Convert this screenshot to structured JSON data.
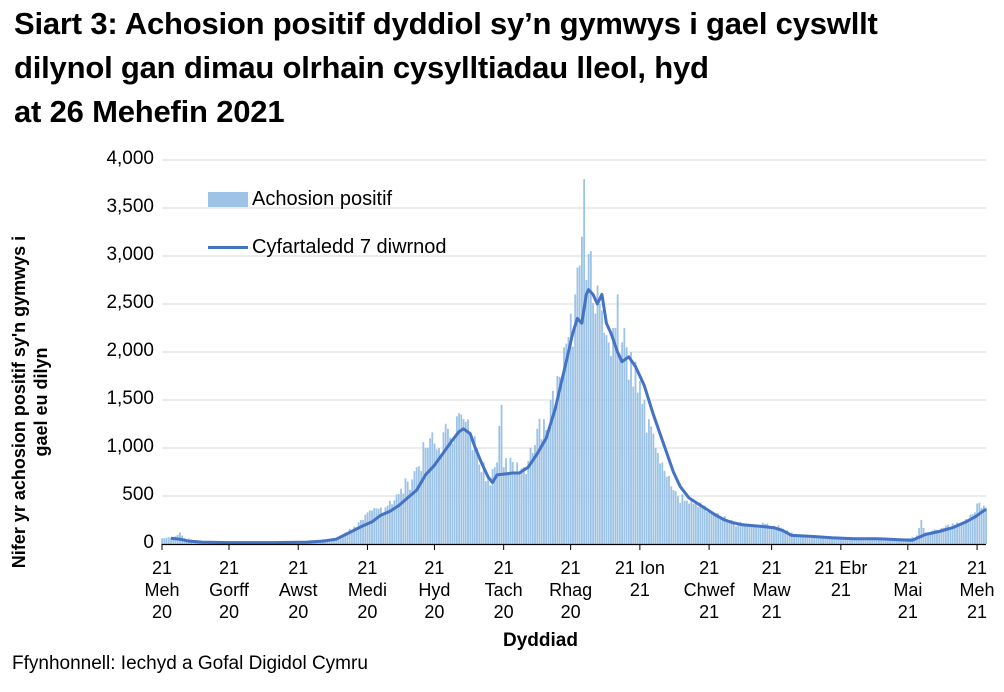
{
  "title": {
    "line1": "Siart 3: Achosion positif dyddiol sy’n gymwys i gael cyswllt",
    "line2": "dilynol gan dimau olrhain cysylltiadau lleol, hyd",
    "line3": "at 26 Mehefin 2021"
  },
  "source": "Ffynhonnell: Iechyd a Gofal Digidol Cymru",
  "colors": {
    "bar": "#9dc3e6",
    "line": "#4472c4",
    "grid": "#d9d9d9",
    "axis": "#000000"
  },
  "chart_data": {
    "type": "bar",
    "title": "Siart 3: Achosion positif dyddiol sy’n gymwys i gael cyswllt dilynol gan dimau olrhain cysylltiadau lleol, hyd at 26 Mehefin 2021",
    "xlabel": "Dyddiad",
    "ylabel": "Nifer yr achosion positif sy'n gymwys i gael eu dilyn",
    "ylim": [
      0,
      4000
    ],
    "yticks": [
      "0",
      "500",
      "1,000",
      "1,500",
      "2,000",
      "2,500",
      "3,000",
      "3,500",
      "4,000"
    ],
    "ytick_values": [
      0,
      500,
      1000,
      1500,
      2000,
      2500,
      3000,
      3500,
      4000
    ],
    "grid": true,
    "legend_position": "upper-left",
    "legend": [
      "Achosion positif",
      "Cyfartaledd 7 diwrnod"
    ],
    "x_tick_labels": [
      {
        "lines": [
          "21",
          "Meh",
          "20"
        ],
        "day": 0
      },
      {
        "lines": [
          "21",
          "Gorff",
          "20"
        ],
        "day": 30
      },
      {
        "lines": [
          "21",
          "Awst",
          "20"
        ],
        "day": 61
      },
      {
        "lines": [
          "21",
          "Medi",
          "20"
        ],
        "day": 92
      },
      {
        "lines": [
          "21",
          "Hyd",
          "20"
        ],
        "day": 122
      },
      {
        "lines": [
          "21",
          "Tach",
          "20"
        ],
        "day": 153
      },
      {
        "lines": [
          "21",
          "Rhag",
          "20"
        ],
        "day": 183
      },
      {
        "lines": [
          "21 Ion",
          "21"
        ],
        "day": 214
      },
      {
        "lines": [
          "21",
          "Chwef",
          "21"
        ],
        "day": 245
      },
      {
        "lines": [
          "21",
          "Maw",
          "21"
        ],
        "day": 273
      },
      {
        "lines": [
          "21 Ebr",
          "21"
        ],
        "day": 304
      },
      {
        "lines": [
          "21",
          "Mai",
          "21"
        ],
        "day": 334
      },
      {
        "lines": [
          "21",
          "Meh",
          "21"
        ],
        "day": 365
      }
    ],
    "n_days": 370,
    "series": [
      {
        "name": "Achosion positif",
        "type": "bar",
        "anchors": [
          [
            0,
            60
          ],
          [
            3,
            70
          ],
          [
            6,
            80
          ],
          [
            8,
            120
          ],
          [
            10,
            60
          ],
          [
            15,
            40
          ],
          [
            20,
            20
          ],
          [
            30,
            15
          ],
          [
            40,
            20
          ],
          [
            50,
            20
          ],
          [
            60,
            25
          ],
          [
            70,
            40
          ],
          [
            78,
            60
          ],
          [
            82,
            120
          ],
          [
            86,
            180
          ],
          [
            90,
            250
          ],
          [
            94,
            350
          ],
          [
            98,
            380
          ],
          [
            102,
            450
          ],
          [
            106,
            520
          ],
          [
            110,
            650
          ],
          [
            114,
            800
          ],
          [
            118,
            1000
          ],
          [
            120,
            1100
          ],
          [
            124,
            1000
          ],
          [
            128,
            1200
          ],
          [
            132,
            1330
          ],
          [
            135,
            1300
          ],
          [
            138,
            1150
          ],
          [
            141,
            1000
          ],
          [
            144,
            850
          ],
          [
            146,
            700
          ],
          [
            148,
            780
          ],
          [
            150,
            850
          ],
          [
            152,
            1450
          ],
          [
            153,
            800
          ],
          [
            156,
            900
          ],
          [
            159,
            850
          ],
          [
            162,
            800
          ],
          [
            165,
            1000
          ],
          [
            168,
            1200
          ],
          [
            171,
            1300
          ],
          [
            174,
            1500
          ],
          [
            177,
            1750
          ],
          [
            180,
            2050
          ],
          [
            183,
            2400
          ],
          [
            185,
            2600
          ],
          [
            187,
            2900
          ],
          [
            189,
            3800
          ],
          [
            190,
            2750
          ],
          [
            192,
            3050
          ],
          [
            194,
            2400
          ],
          [
            196,
            2500
          ],
          [
            198,
            2200
          ],
          [
            200,
            2100
          ],
          [
            202,
            2250
          ],
          [
            204,
            2600
          ],
          [
            206,
            2100
          ],
          [
            208,
            2050
          ],
          [
            210,
            2000
          ],
          [
            212,
            1900
          ],
          [
            214,
            1700
          ],
          [
            216,
            1500
          ],
          [
            218,
            1300
          ],
          [
            220,
            1150
          ],
          [
            222,
            950
          ],
          [
            224,
            850
          ],
          [
            226,
            700
          ],
          [
            228,
            600
          ],
          [
            230,
            550
          ],
          [
            234,
            450
          ],
          [
            238,
            420
          ],
          [
            242,
            380
          ],
          [
            246,
            330
          ],
          [
            250,
            280
          ],
          [
            254,
            240
          ],
          [
            258,
            210
          ],
          [
            262,
            200
          ],
          [
            266,
            190
          ],
          [
            270,
            210
          ],
          [
            274,
            190
          ],
          [
            278,
            160
          ],
          [
            282,
            120
          ],
          [
            286,
            90
          ],
          [
            290,
            80
          ],
          [
            295,
            75
          ],
          [
            300,
            70
          ],
          [
            305,
            65
          ],
          [
            310,
            60
          ],
          [
            315,
            55
          ],
          [
            320,
            60
          ],
          [
            325,
            55
          ],
          [
            330,
            50
          ],
          [
            335,
            60
          ],
          [
            338,
            90
          ],
          [
            340,
            250
          ],
          [
            342,
            120
          ],
          [
            345,
            140
          ],
          [
            350,
            170
          ],
          [
            355,
            200
          ],
          [
            360,
            260
          ],
          [
            364,
            330
          ],
          [
            366,
            430
          ],
          [
            368,
            400
          ],
          [
            369,
            380
          ]
        ]
      },
      {
        "name": "Cyfartaledd 7 diwrnod",
        "type": "line",
        "anchors": [
          [
            4,
            60
          ],
          [
            8,
            50
          ],
          [
            12,
            30
          ],
          [
            18,
            20
          ],
          [
            30,
            15
          ],
          [
            50,
            15
          ],
          [
            65,
            20
          ],
          [
            72,
            30
          ],
          [
            78,
            50
          ],
          [
            84,
            120
          ],
          [
            90,
            190
          ],
          [
            94,
            230
          ],
          [
            98,
            300
          ],
          [
            102,
            340
          ],
          [
            106,
            400
          ],
          [
            110,
            480
          ],
          [
            114,
            560
          ],
          [
            118,
            720
          ],
          [
            122,
            820
          ],
          [
            126,
            950
          ],
          [
            130,
            1080
          ],
          [
            133,
            1170
          ],
          [
            135,
            1200
          ],
          [
            138,
            1150
          ],
          [
            140,
            1020
          ],
          [
            143,
            850
          ],
          [
            146,
            700
          ],
          [
            148,
            640
          ],
          [
            150,
            720
          ],
          [
            154,
            730
          ],
          [
            157,
            740
          ],
          [
            160,
            740
          ],
          [
            164,
            800
          ],
          [
            168,
            940
          ],
          [
            172,
            1100
          ],
          [
            176,
            1400
          ],
          [
            180,
            1800
          ],
          [
            184,
            2200
          ],
          [
            186,
            2350
          ],
          [
            188,
            2300
          ],
          [
            190,
            2600
          ],
          [
            191,
            2650
          ],
          [
            193,
            2600
          ],
          [
            195,
            2500
          ],
          [
            197,
            2600
          ],
          [
            199,
            2300
          ],
          [
            201,
            2200
          ],
          [
            204,
            2000
          ],
          [
            206,
            1900
          ],
          [
            209,
            1950
          ],
          [
            212,
            1850
          ],
          [
            214,
            1750
          ],
          [
            216,
            1650
          ],
          [
            218,
            1500
          ],
          [
            220,
            1350
          ],
          [
            223,
            1150
          ],
          [
            226,
            950
          ],
          [
            229,
            750
          ],
          [
            232,
            600
          ],
          [
            236,
            480
          ],
          [
            240,
            420
          ],
          [
            244,
            360
          ],
          [
            248,
            300
          ],
          [
            252,
            250
          ],
          [
            256,
            220
          ],
          [
            260,
            200
          ],
          [
            265,
            190
          ],
          [
            270,
            180
          ],
          [
            274,
            170
          ],
          [
            278,
            140
          ],
          [
            282,
            90
          ],
          [
            290,
            80
          ],
          [
            300,
            65
          ],
          [
            310,
            55
          ],
          [
            320,
            55
          ],
          [
            330,
            45
          ],
          [
            336,
            40
          ],
          [
            338,
            60
          ],
          [
            342,
            100
          ],
          [
            348,
            130
          ],
          [
            354,
            170
          ],
          [
            360,
            230
          ],
          [
            364,
            280
          ],
          [
            367,
            330
          ],
          [
            369,
            360
          ]
        ]
      }
    ]
  }
}
